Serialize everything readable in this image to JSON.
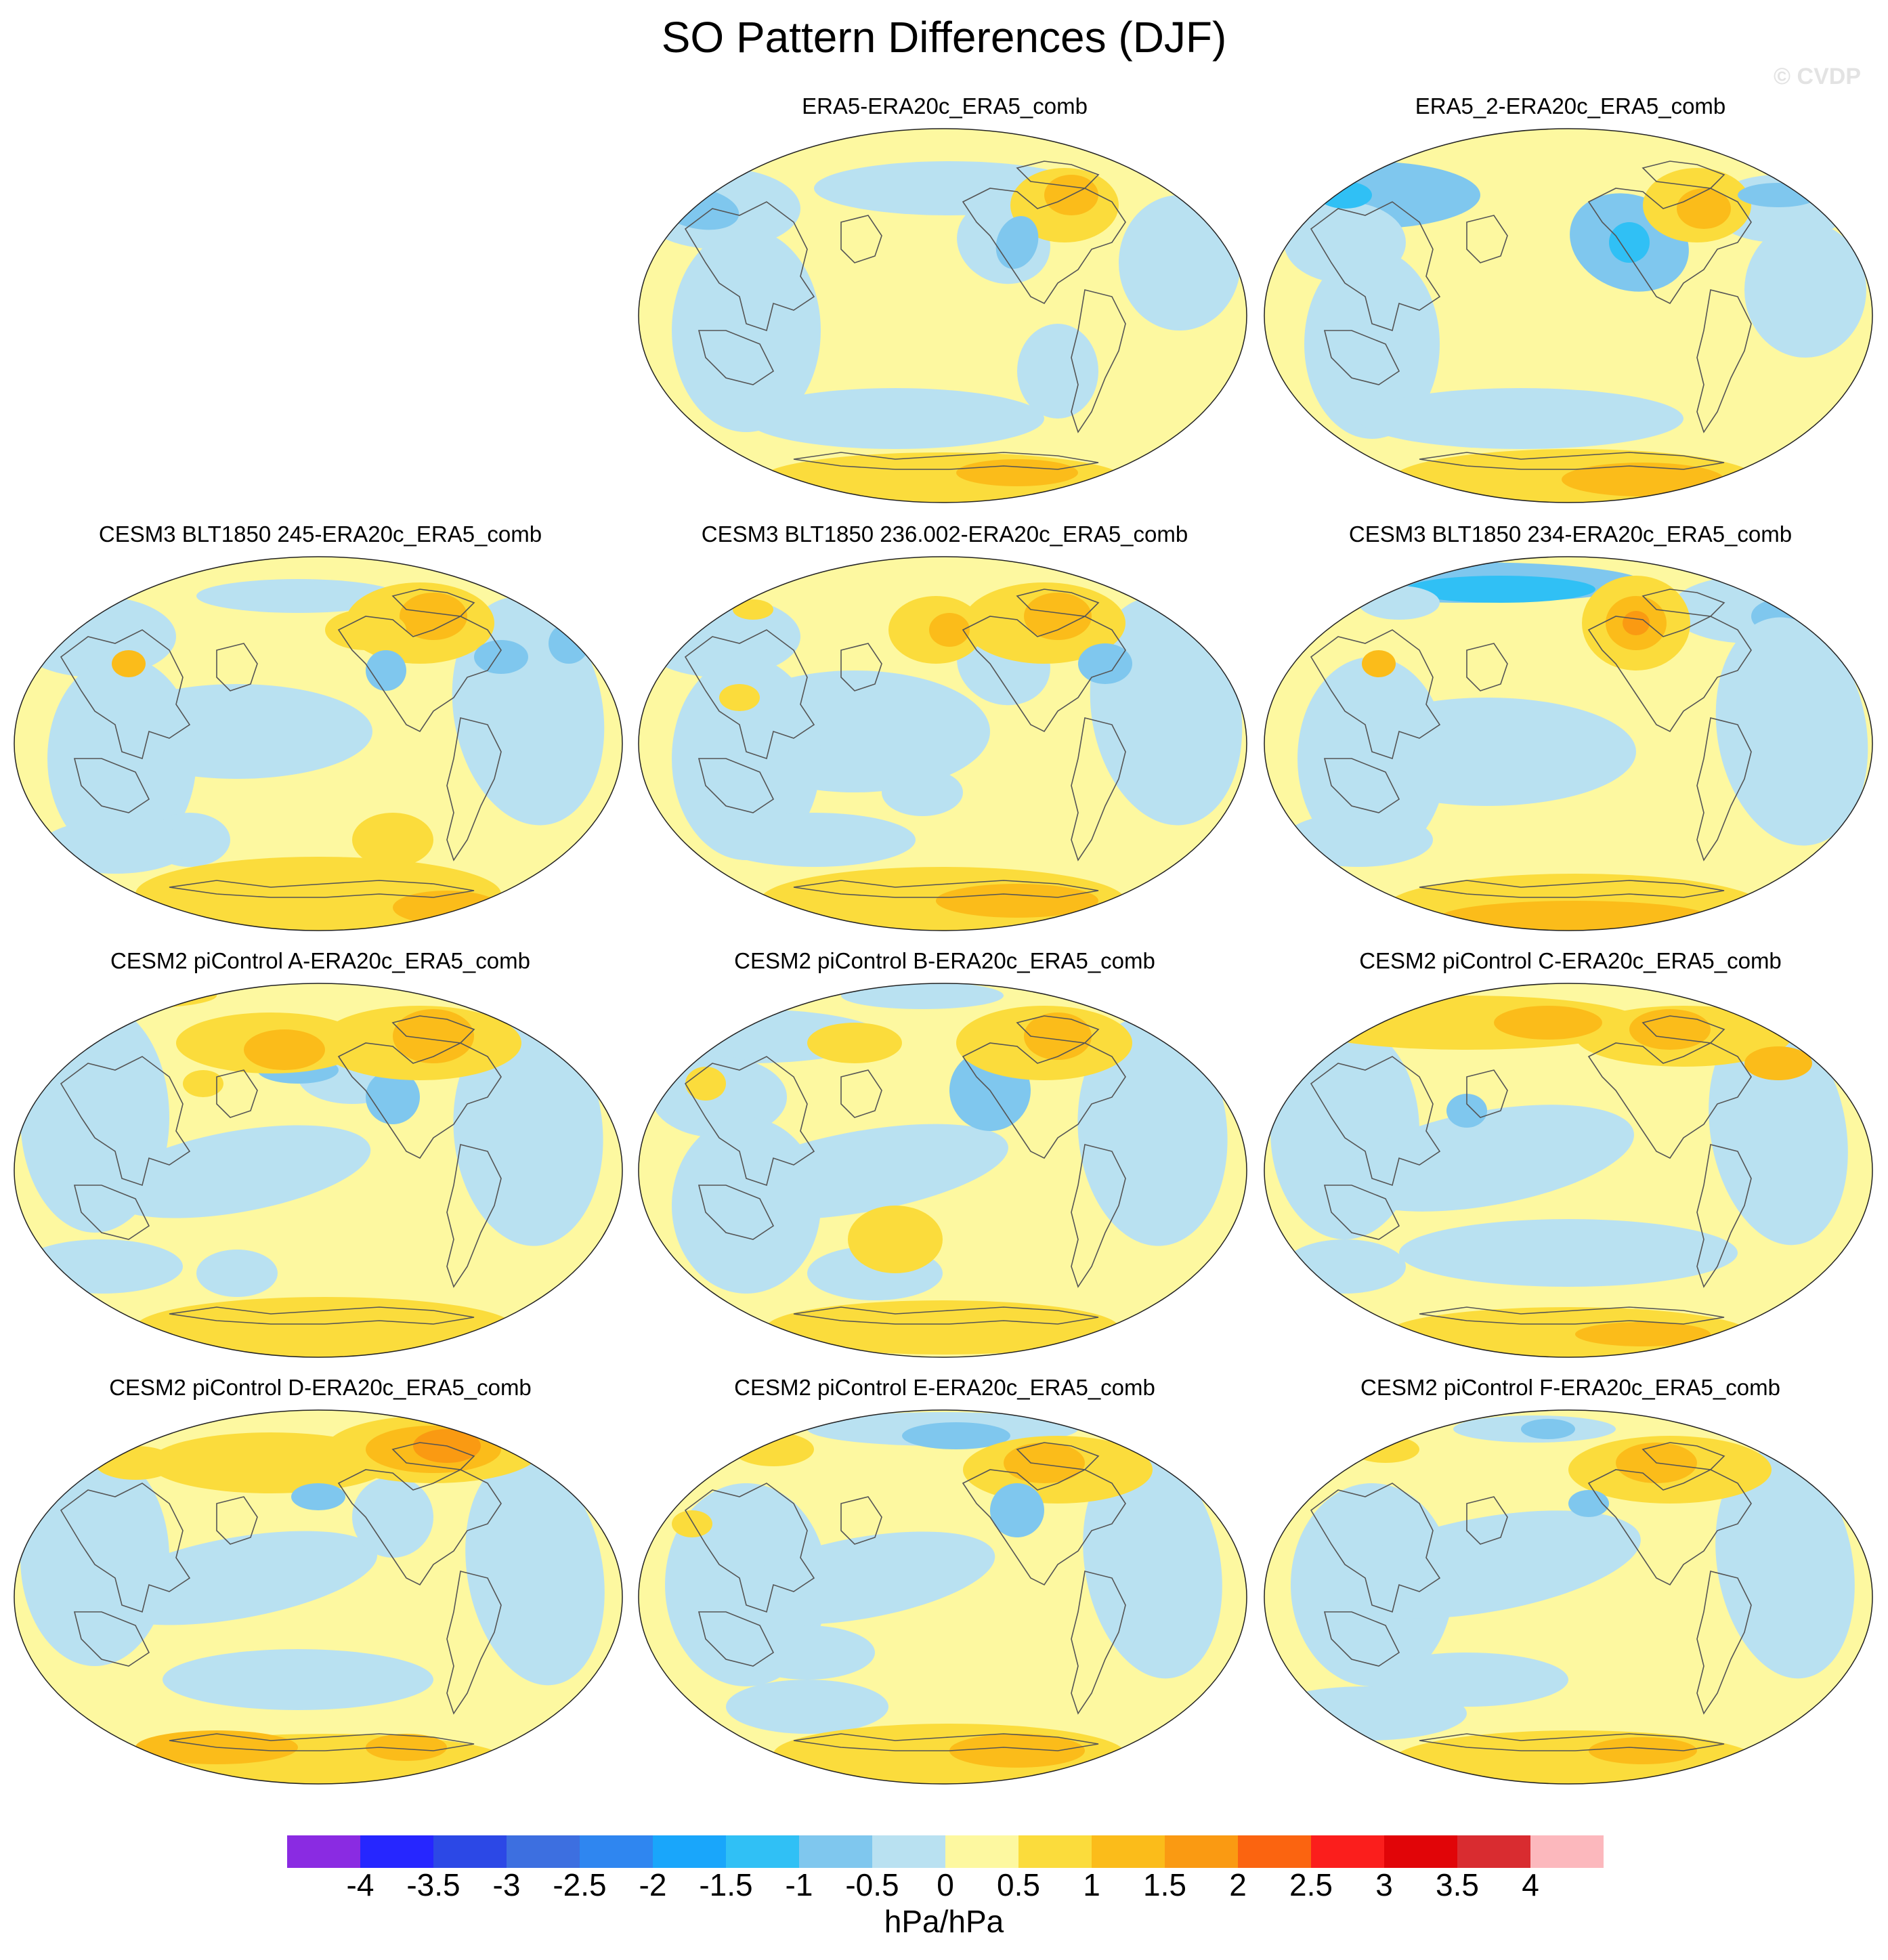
{
  "title": "SO Pattern Differences (DJF)",
  "watermark": "© CVDP",
  "panels": [
    {
      "title": "ERA5-ERA20c_ERA5_comb",
      "pattern": "obs1"
    },
    {
      "title": "ERA5_2-ERA20c_ERA5_comb",
      "pattern": "obs2"
    },
    {
      "title": "CESM3 BLT1850 245-ERA20c_ERA5_comb",
      "pattern": "blt245"
    },
    {
      "title": "CESM3 BLT1850 236.002-ERA20c_ERA5_comb",
      "pattern": "blt236"
    },
    {
      "title": "CESM3 BLT1850 234-ERA20c_ERA5_comb",
      "pattern": "blt234"
    },
    {
      "title": "CESM2 piControl A-ERA20c_ERA5_comb",
      "pattern": "picA"
    },
    {
      "title": "CESM2 piControl B-ERA20c_ERA5_comb",
      "pattern": "picB"
    },
    {
      "title": "CESM2 piControl C-ERA20c_ERA5_comb",
      "pattern": "picC"
    },
    {
      "title": "CESM2 piControl D-ERA20c_ERA5_comb",
      "pattern": "picD"
    },
    {
      "title": "CESM2 piControl E-ERA20c_ERA5_comb",
      "pattern": "picE"
    },
    {
      "title": "CESM2 piControl F-ERA20c_ERA5_comb",
      "pattern": "picF"
    }
  ],
  "colorbar": {
    "colors": [
      "#8a2be2",
      "#2626ff",
      "#2c48e6",
      "#3d6fe0",
      "#2f86f0",
      "#19a6fb",
      "#30c0f5",
      "#7fc7ee",
      "#b9e1f1",
      "#fdf8a0",
      "#fbdc3c",
      "#fbbc1a",
      "#fa9a12",
      "#fb6410",
      "#fb1e1c",
      "#e10508",
      "#d92c30",
      "#fcb8bd"
    ],
    "labels": [
      "-4",
      "-3.5",
      "-3",
      "-2.5",
      "-2",
      "-1.5",
      "-1",
      "-0.5",
      "0",
      "0.5",
      "1",
      "1.5",
      "2",
      "2.5",
      "3",
      "3.5",
      "4"
    ],
    "units": "hPa/hPa"
  },
  "map_palette": {
    "neg2": "#30c0f5",
    "neg1": "#7fc7ee",
    "neg0": "#b9e1f1",
    "pos0": "#fdf8a0",
    "pos1": "#fbdc3c",
    "pos2": "#fbbc1a",
    "pos3": "#fa9a12",
    "coast": "#555555"
  }
}
